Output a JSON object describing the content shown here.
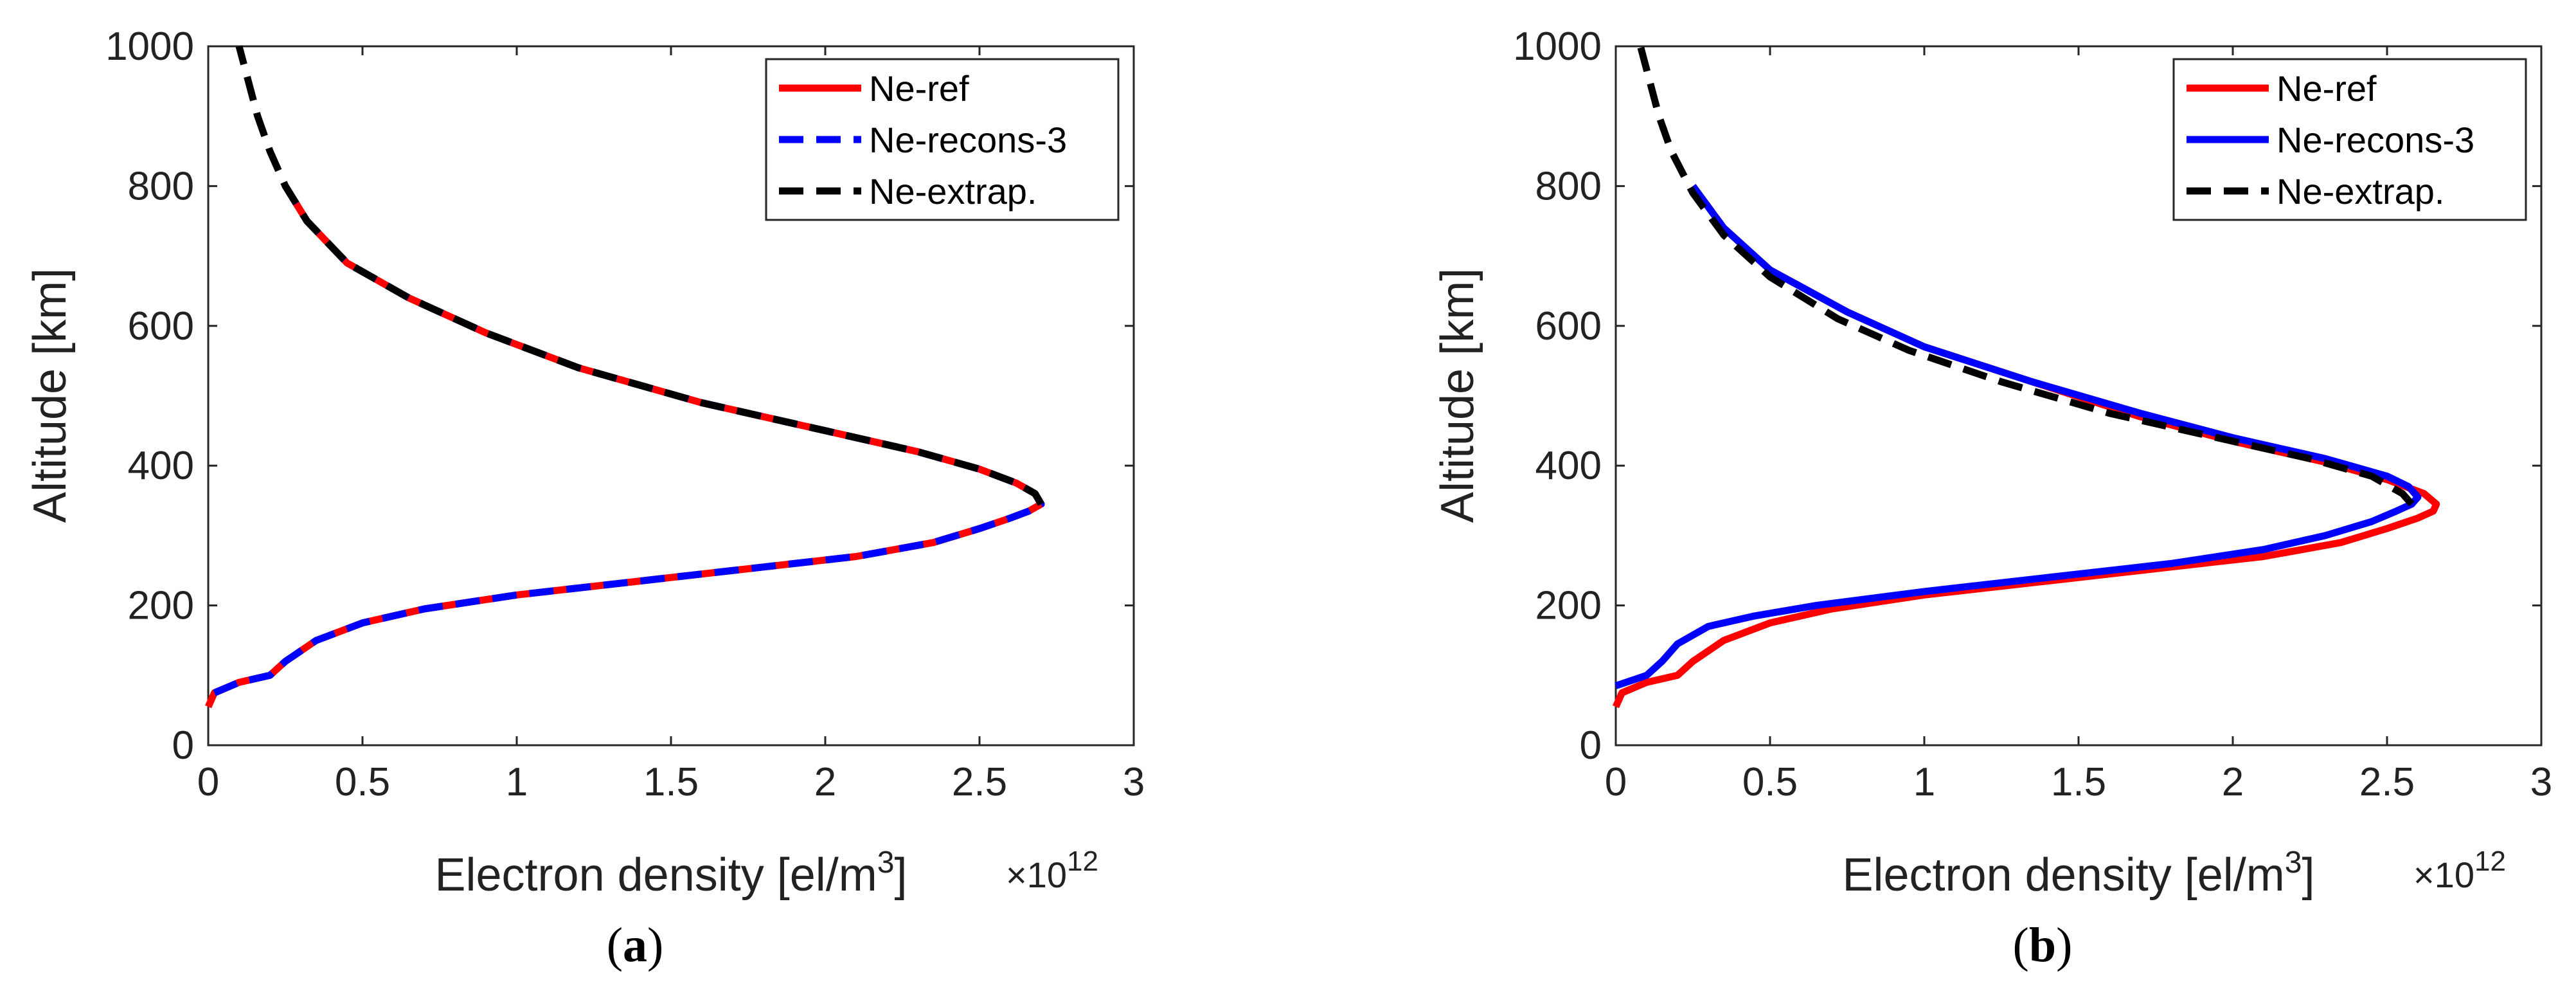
{
  "chart_data": [
    {
      "type": "line",
      "panel": "a",
      "caption_letter": "a",
      "xlabel_main": "Electron density [el/m",
      "xlabel_sup": "3",
      "xlabel_end": "]",
      "x_exponent_prefix": "×10",
      "x_exponent": "12",
      "ylabel": "Altitude [km]",
      "xlim": [
        0,
        3
      ],
      "ylim": [
        0,
        1000
      ],
      "x_ticks": [
        0,
        0.5,
        1,
        1.5,
        2,
        2.5,
        3
      ],
      "y_ticks": [
        0,
        200,
        400,
        600,
        800,
        1000
      ],
      "legend_position": "top-right",
      "series": [
        {
          "name": "Ne-ref",
          "color": "#ff0000",
          "style": "solid",
          "x": [
            0.0,
            0.02,
            0.1,
            0.2,
            0.25,
            0.35,
            0.5,
            0.7,
            1.0,
            1.4,
            1.8,
            2.1,
            2.35,
            2.5,
            2.6,
            2.66,
            2.7,
            2.68,
            2.62,
            2.5,
            2.3,
            2.0,
            1.6,
            1.2,
            0.9,
            0.65,
            0.45,
            0.32,
            0.25
          ],
          "y": [
            55,
            75,
            90,
            100,
            120,
            150,
            175,
            195,
            215,
            235,
            255,
            270,
            290,
            310,
            325,
            335,
            345,
            360,
            375,
            395,
            420,
            450,
            490,
            540,
            590,
            640,
            690,
            750,
            800
          ]
        },
        {
          "name": "Ne-recons-3",
          "color": "#0000ff",
          "style": "dashed",
          "x": [
            0.02,
            0.1,
            0.2,
            0.25,
            0.35,
            0.5,
            0.7,
            1.0,
            1.4,
            1.8,
            2.1,
            2.35,
            2.5,
            2.6,
            2.66,
            2.7,
            2.68,
            2.62,
            2.5,
            2.3,
            2.0,
            1.6,
            1.2,
            0.9,
            0.65,
            0.45,
            0.32,
            0.25
          ],
          "y": [
            75,
            90,
            100,
            120,
            150,
            175,
            195,
            215,
            235,
            255,
            270,
            290,
            310,
            325,
            335,
            345,
            360,
            375,
            395,
            420,
            450,
            490,
            540,
            590,
            640,
            690,
            750,
            800
          ]
        },
        {
          "name": "Ne-extrap.",
          "color": "#000000",
          "style": "dashed",
          "x": [
            2.7,
            2.68,
            2.62,
            2.5,
            2.3,
            2.0,
            1.6,
            1.2,
            0.9,
            0.65,
            0.45,
            0.32,
            0.25,
            0.2,
            0.16,
            0.13,
            0.1
          ],
          "y": [
            345,
            360,
            375,
            395,
            420,
            450,
            490,
            540,
            590,
            640,
            690,
            750,
            800,
            850,
            900,
            950,
            1000
          ]
        }
      ]
    },
    {
      "type": "line",
      "panel": "b",
      "caption_letter": "b",
      "xlabel_main": "Electron density [el/m",
      "xlabel_sup": "3",
      "xlabel_end": "]",
      "x_exponent_prefix": "×10",
      "x_exponent": "12",
      "ylabel": "Altitude [km]",
      "xlim": [
        0,
        3
      ],
      "ylim": [
        0,
        1000
      ],
      "x_ticks": [
        0,
        0.5,
        1,
        1.5,
        2,
        2.5,
        3
      ],
      "y_ticks": [
        0,
        200,
        400,
        600,
        800,
        1000
      ],
      "legend_position": "top-right",
      "series": [
        {
          "name": "Ne-ref",
          "color": "#ff0000",
          "style": "solid",
          "x": [
            0.0,
            0.02,
            0.1,
            0.2,
            0.25,
            0.35,
            0.5,
            0.7,
            1.0,
            1.4,
            1.8,
            2.1,
            2.35,
            2.5,
            2.6,
            2.65,
            2.66,
            2.62,
            2.5,
            2.3,
            2.0,
            1.7,
            1.35,
            1.0,
            0.75,
            0.5,
            0.35,
            0.25
          ],
          "y": [
            55,
            75,
            90,
            100,
            120,
            150,
            175,
            195,
            215,
            235,
            255,
            270,
            290,
            310,
            325,
            335,
            345,
            360,
            380,
            405,
            435,
            470,
            520,
            570,
            620,
            680,
            740,
            800
          ]
        },
        {
          "name": "Ne-recons-3",
          "color": "#0000ff",
          "style": "solid",
          "x": [
            0.0,
            0.1,
            0.15,
            0.2,
            0.3,
            0.45,
            0.65,
            1.0,
            1.4,
            1.8,
            2.1,
            2.3,
            2.45,
            2.53,
            2.58,
            2.6,
            2.57,
            2.5,
            2.3,
            2.0,
            1.7,
            1.35,
            1.0,
            0.75,
            0.5,
            0.35,
            0.25
          ],
          "y": [
            85,
            100,
            120,
            145,
            170,
            185,
            200,
            220,
            240,
            260,
            280,
            300,
            320,
            335,
            345,
            355,
            370,
            385,
            410,
            440,
            475,
            520,
            570,
            620,
            680,
            740,
            800
          ]
        },
        {
          "name": "Ne-extrap.",
          "color": "#000000",
          "style": "dashed",
          "x": [
            2.58,
            2.55,
            2.45,
            2.25,
            1.95,
            1.6,
            1.25,
            0.95,
            0.72,
            0.5,
            0.35,
            0.25,
            0.18,
            0.14,
            0.11,
            0.08
          ],
          "y": [
            345,
            360,
            385,
            410,
            440,
            475,
            520,
            565,
            610,
            670,
            730,
            790,
            850,
            900,
            950,
            1000
          ]
        }
      ]
    }
  ]
}
